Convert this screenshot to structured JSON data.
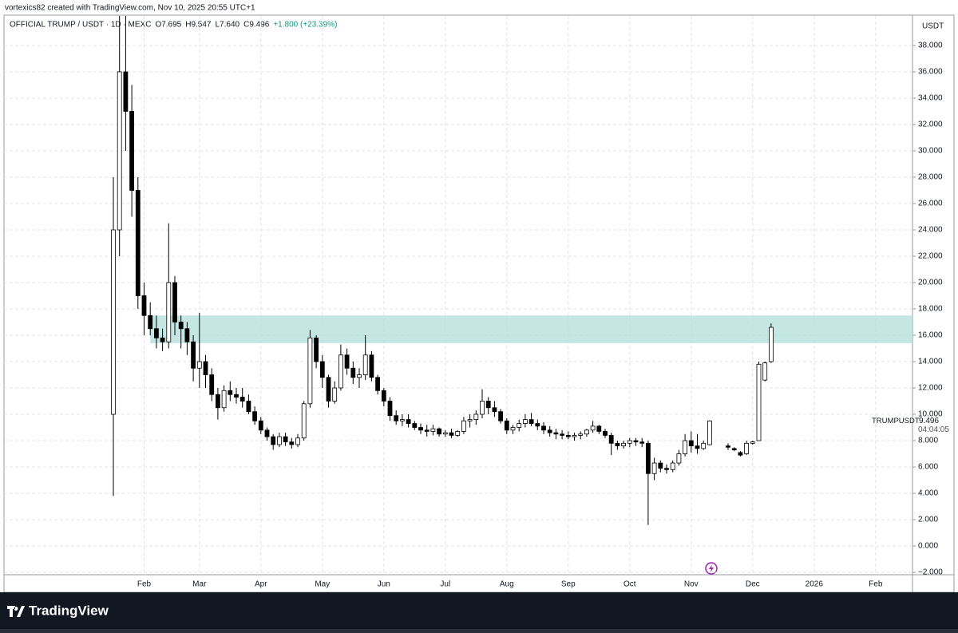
{
  "header": {
    "text": "vortexics82 created with TradingView.com, Nov 10, 2025 20:55 UTC+1"
  },
  "chart_data": {
    "type": "candlestick",
    "legend": {
      "symbol": "OFFICIAL TRUMP / USDT · 1D · MEXC",
      "open": "O7.695",
      "high": "H9.547",
      "low": "L7.640",
      "close": "C9.496",
      "change": "+1.800 (+23.39%)"
    },
    "currency": "USDT",
    "countdown": "04:04:05",
    "categories": [
      null,
      null,
      null,
      null,
      null,
      "Feb",
      null,
      null,
      null,
      null,
      null,
      null,
      null,
      null,
      "Mar",
      null,
      null,
      null,
      null,
      null,
      null,
      null,
      null,
      null,
      "Apr",
      null,
      null,
      null,
      null,
      null,
      null,
      null,
      null,
      null,
      "May",
      null,
      null,
      null,
      null,
      null,
      null,
      null,
      null,
      null,
      "Jun",
      null,
      null,
      null,
      null,
      null,
      null,
      null,
      null,
      null,
      "Jul",
      null,
      null,
      null,
      null,
      null,
      null,
      null,
      null,
      null,
      "Aug",
      null,
      null,
      null,
      null,
      null,
      null,
      null,
      null,
      null,
      "Sep",
      null,
      null,
      null,
      null,
      null,
      null,
      null,
      null,
      null,
      "Oct",
      null,
      null,
      null,
      null,
      null,
      null,
      null,
      null,
      null,
      "Nov",
      null,
      null,
      null,
      null,
      null,
      null,
      null,
      null,
      null,
      "Dec",
      null,
      null,
      null,
      null,
      null,
      null,
      null,
      null,
      null,
      "2026",
      null,
      null,
      null,
      null,
      null,
      null,
      null,
      null,
      null,
      "Feb",
      null,
      null,
      null,
      null,
      null
    ],
    "series": [
      {
        "name": "TRUMPUSDT",
        "up_color": "#ffffff",
        "down_color": "#000000",
        "line_color": "#000000",
        "open": [
          10,
          24,
          36,
          33,
          27,
          19,
          17.5,
          16.5,
          15.8,
          15.5,
          20,
          17,
          16.5,
          15.5,
          13.5,
          14,
          13,
          11.5,
          10.5,
          11.8,
          11.5,
          11.3,
          11,
          10.2,
          9.5,
          8.8,
          8.3,
          7.7,
          8.3,
          7.9,
          7.7,
          8.2,
          10.8,
          15.8,
          14,
          12.8,
          11,
          12,
          14.5,
          13.5,
          12.8,
          13,
          14.5,
          12.8,
          11.8,
          11,
          9.9,
          9.5,
          9.6,
          9.3,
          9,
          8.8,
          8.7,
          8.9,
          8.5,
          8.6,
          8.4,
          8.7,
          9.5,
          9.6,
          10,
          11,
          10.5,
          10.2,
          9.5,
          8.8,
          9,
          9.3,
          9.6,
          9.3,
          9.1,
          8.8,
          8.6,
          8.5,
          8.4,
          8.3,
          8.4,
          8.5,
          8.8,
          9.1,
          8.7,
          8.4,
          7.8,
          7.6,
          7.8,
          8,
          7.9,
          7.8,
          5.5,
          6.3,
          5.9,
          5.8,
          6.3,
          7,
          8,
          7.6,
          7.4,
          7.695,
          null,
          null,
          7.6,
          7.4,
          7.1,
          7,
          7.8,
          8,
          12.6,
          14,
          null,
          null,
          null,
          null,
          null,
          null,
          null,
          null,
          null,
          null,
          null,
          null,
          null,
          null,
          null,
          null,
          null,
          null,
          null,
          null,
          null,
          null
        ],
        "high": [
          28,
          42,
          42,
          35,
          28,
          20,
          18.5,
          17.5,
          16.5,
          24.5,
          20.5,
          17.5,
          17,
          16,
          17.7,
          14.5,
          13.5,
          12,
          12.2,
          12.5,
          12,
          12,
          11.5,
          10.6,
          9.8,
          9,
          8.5,
          8.6,
          8.6,
          8.2,
          8.5,
          11,
          16.4,
          16,
          14.5,
          13,
          12.5,
          15.3,
          15,
          14,
          13.5,
          16,
          14.8,
          13,
          12,
          11.3,
          10.3,
          10,
          10,
          9.5,
          9.3,
          9.2,
          9.2,
          9,
          8.8,
          8.9,
          8.8,
          9.8,
          10,
          10.3,
          11.9,
          11.3,
          11,
          10.4,
          9.7,
          9.2,
          9.6,
          10,
          10.1,
          9.6,
          9.4,
          9.1,
          8.9,
          8.8,
          8.7,
          8.6,
          8.7,
          8.9,
          9.5,
          9.2,
          8.9,
          8.6,
          8,
          8,
          8.2,
          8.2,
          8.2,
          8,
          6.7,
          6.5,
          6.2,
          6.5,
          7.3,
          8.5,
          8.7,
          8.5,
          8,
          9.547,
          null,
          null,
          7.8,
          7.5,
          7.2,
          8,
          8,
          14,
          14,
          16.9,
          null,
          null,
          null,
          null,
          null,
          null,
          null,
          null,
          null,
          null,
          null,
          null,
          null,
          null,
          null,
          null,
          null,
          null,
          null,
          null,
          null,
          null
        ],
        "low": [
          3.8,
          22,
          30,
          25,
          18,
          16,
          16,
          15,
          14.8,
          15,
          16,
          15,
          14.5,
          12.5,
          12,
          12,
          11,
          9.6,
          10.2,
          11,
          10.8,
          10.5,
          10,
          9.2,
          8.5,
          8,
          7.3,
          7.5,
          7.6,
          7.4,
          7.5,
          8,
          10.5,
          13.5,
          12,
          10.5,
          10.8,
          11.8,
          13,
          12.3,
          12,
          12.6,
          12.5,
          11.5,
          10.6,
          9.5,
          9.2,
          9.1,
          9,
          8.8,
          8.5,
          8.3,
          8.4,
          8.3,
          8.3,
          8.2,
          8.3,
          8.5,
          9,
          9.2,
          9.7,
          10,
          9.8,
          9.3,
          8.5,
          8.5,
          8.7,
          9,
          9.1,
          8.8,
          8.5,
          8.3,
          8.1,
          8.1,
          8.1,
          8,
          8.1,
          8.3,
          8.6,
          8.5,
          8.2,
          6.9,
          7.3,
          7.4,
          7.5,
          7.6,
          7.5,
          1.6,
          5,
          5.6,
          5.5,
          5.6,
          6.1,
          6.8,
          7.1,
          7,
          7.3,
          7.64,
          null,
          null,
          7.3,
          7.2,
          6.8,
          6.9,
          7.7,
          8,
          12.5,
          13.9,
          null,
          null,
          null,
          null,
          null,
          null,
          null,
          null,
          null,
          null,
          null,
          null,
          null,
          null,
          null,
          null,
          null,
          null,
          null,
          null,
          null,
          null
        ],
        "close": [
          24,
          36,
          33,
          27,
          19,
          17.5,
          16.5,
          15.8,
          15.5,
          20,
          17,
          16.5,
          15.5,
          13.5,
          14,
          13,
          11.5,
          10.5,
          11.8,
          11.5,
          11.3,
          11,
          10.2,
          9.5,
          8.8,
          8.3,
          7.7,
          8.3,
          7.9,
          7.7,
          8.2,
          10.8,
          15.8,
          14,
          12.8,
          11,
          12,
          14.5,
          13.5,
          12.8,
          13,
          14.5,
          12.8,
          11.8,
          11,
          9.9,
          9.5,
          9.6,
          9.3,
          9,
          8.8,
          8.7,
          8.9,
          8.5,
          8.6,
          8.4,
          8.7,
          9.5,
          9.6,
          10,
          11,
          10.5,
          10.2,
          9.5,
          8.8,
          9,
          9.3,
          9.6,
          9.3,
          9.1,
          8.8,
          8.6,
          8.5,
          8.4,
          8.3,
          8.4,
          8.5,
          8.8,
          9.1,
          8.7,
          8.4,
          7.8,
          7.6,
          7.8,
          8,
          7.9,
          7.8,
          5.5,
          6.3,
          5.9,
          5.8,
          6.3,
          7,
          8,
          7.6,
          7.4,
          7.8,
          9.496,
          null,
          null,
          7.5,
          7.3,
          6.9,
          7.8,
          7.9,
          13.8,
          13.9,
          16.6,
          null,
          null,
          null,
          null,
          null,
          null,
          null,
          null,
          null,
          null,
          null,
          null,
          null,
          null,
          null,
          null,
          null,
          null,
          null,
          null,
          null,
          null
        ],
        "last_index": 97
      }
    ],
    "zone": {
      "low": 15.4,
      "high": 17.5,
      "color": "#b2dfdb"
    },
    "ylim": [
      -2.18,
      40.24
    ],
    "yticks": [
      {
        "value": -2,
        "label": "−2.000"
      },
      {
        "value": 0,
        "label": "0.000"
      },
      {
        "value": 2,
        "label": "2.000"
      },
      {
        "value": 4,
        "label": "4.000"
      },
      {
        "value": 6,
        "label": "6.000"
      },
      {
        "value": 8,
        "label": "8.000"
      },
      {
        "value": 10,
        "label": "10.000"
      },
      {
        "value": 12,
        "label": "12.000"
      },
      {
        "value": 14,
        "label": "14.000"
      },
      {
        "value": 16,
        "label": "16.000"
      },
      {
        "value": 18,
        "label": "18.000"
      },
      {
        "value": 20,
        "label": "20.000"
      },
      {
        "value": 22,
        "label": "22.000"
      },
      {
        "value": 24,
        "label": "24.000"
      },
      {
        "value": 26,
        "label": "26.000"
      },
      {
        "value": 28,
        "label": "28.000"
      },
      {
        "value": 30,
        "label": "30.000"
      },
      {
        "value": 32,
        "label": "32.000"
      },
      {
        "value": 34,
        "label": "34.000"
      },
      {
        "value": 36,
        "label": "36.000"
      },
      {
        "value": 38,
        "label": "38.000"
      }
    ],
    "grid": true
  },
  "footer": {
    "brand": "TradingView"
  }
}
